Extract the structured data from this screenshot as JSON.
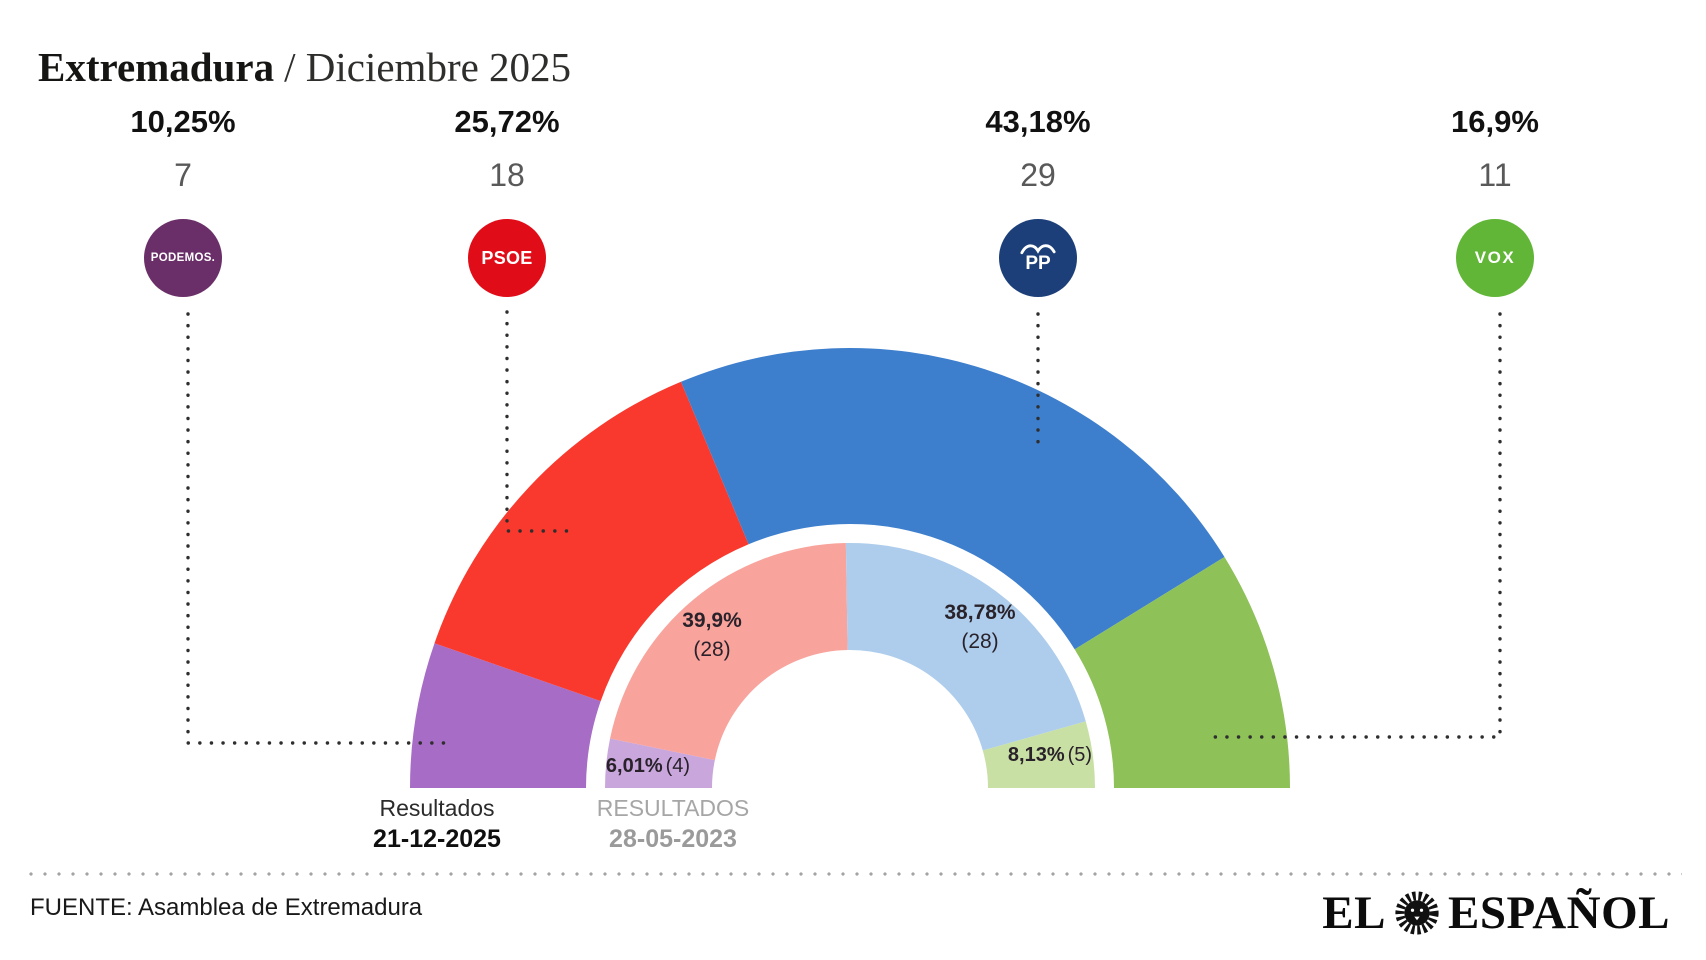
{
  "title": {
    "region": "Extremadura",
    "period": "/ Diciembre 2025"
  },
  "parties": [
    {
      "name": "PODEMOS",
      "badge_text": "PODEMOS.",
      "badge_color": "#6a2f68"
    },
    {
      "name": "PSOE",
      "badge_text": "PSOE",
      "badge_color": "#e00d18"
    },
    {
      "name": "PP",
      "badge_text": "PP",
      "badge_color": "#1c3e79"
    },
    {
      "name": "VOX",
      "badge_text": "VOX",
      "badge_color": "#62b637"
    }
  ],
  "chart_data": {
    "type": "pie",
    "subtype": "hemicycle-double-ring",
    "title": "Extremadura / Diciembre 2025",
    "rings": [
      {
        "id": "current",
        "label": "Resultados 21-12-2025",
        "series": [
          {
            "party": "PODEMOS",
            "percent": 10.25,
            "percent_label": "10,25%",
            "seats": 7,
            "seats_label": "7",
            "color": "#a76cc5"
          },
          {
            "party": "PSOE",
            "percent": 25.72,
            "percent_label": "25,72%",
            "seats": 18,
            "seats_label": "18",
            "color": "#f9392e"
          },
          {
            "party": "PP",
            "percent": 43.18,
            "percent_label": "43,18%",
            "seats": 29,
            "seats_label": "29",
            "color": "#3e7fcd"
          },
          {
            "party": "VOX",
            "percent": 16.9,
            "percent_label": "16,9%",
            "seats": 11,
            "seats_label": "11",
            "color": "#8ec158"
          }
        ]
      },
      {
        "id": "previous",
        "label": "RESULTADOS 28-05-2023",
        "series": [
          {
            "party": "PODEMOS",
            "percent": 6.01,
            "percent_label": "6,01%",
            "seats": 4,
            "seats_label": "(4)",
            "color": "#c9a6dc"
          },
          {
            "party": "PSOE",
            "percent": 39.9,
            "percent_label": "39,9%",
            "seats": 28,
            "seats_label": "(28)",
            "color": "#f9a39d"
          },
          {
            "party": "PP",
            "percent": 38.78,
            "percent_label": "38,78%",
            "seats": 28,
            "seats_label": "(28)",
            "color": "#aecdec"
          },
          {
            "party": "VOX",
            "percent": 8.13,
            "percent_label": "8,13%",
            "seats": 5,
            "seats_label": "(5)",
            "color": "#c9e0a4"
          }
        ]
      }
    ]
  },
  "legend": {
    "current": {
      "line1": "Resultados",
      "line2": "21-12-2025"
    },
    "previous": {
      "line1": "RESULTADOS",
      "line2": "28-05-2023"
    }
  },
  "footer": {
    "source": "FUENTE: Asamblea de Extremadura",
    "brand": {
      "el": "EL",
      "espanol": "ESPAÑOL"
    }
  }
}
